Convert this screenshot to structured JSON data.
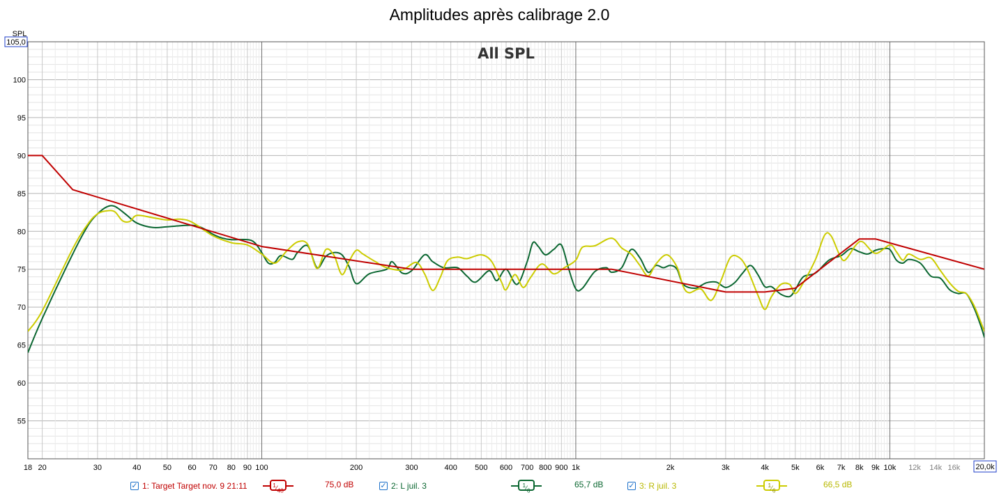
{
  "title": "Amplitudes après calibrage 2.0",
  "chart_data": {
    "type": "line",
    "title": "All SPL",
    "ylabel": "SPL",
    "xscale": "log",
    "xlim": [
      18,
      20000
    ],
    "ylim": [
      50,
      105
    ],
    "grid": true,
    "y_ticks": [
      "55",
      "60",
      "65",
      "70",
      "75",
      "80",
      "85",
      "90",
      "95",
      "100"
    ],
    "y_top_box": "105,0",
    "x_ticks": [
      {
        "f": 18,
        "label": "18",
        "minor": false
      },
      {
        "f": 20,
        "label": "20",
        "minor": false
      },
      {
        "f": 30,
        "label": "30",
        "minor": false
      },
      {
        "f": 40,
        "label": "40",
        "minor": false
      },
      {
        "f": 50,
        "label": "50",
        "minor": false
      },
      {
        "f": 60,
        "label": "60",
        "minor": false
      },
      {
        "f": 70,
        "label": "70",
        "minor": false
      },
      {
        "f": 80,
        "label": "80",
        "minor": false
      },
      {
        "f": 90,
        "label": "90",
        "minor": false
      },
      {
        "f": 100,
        "label": "100",
        "minor": false
      },
      {
        "f": 200,
        "label": "200",
        "minor": false
      },
      {
        "f": 300,
        "label": "300",
        "minor": false
      },
      {
        "f": 400,
        "label": "400",
        "minor": false
      },
      {
        "f": 500,
        "label": "500",
        "minor": false
      },
      {
        "f": 600,
        "label": "600",
        "minor": false
      },
      {
        "f": 700,
        "label": "700",
        "minor": false
      },
      {
        "f": 800,
        "label": "800",
        "minor": false
      },
      {
        "f": 900,
        "label": "900",
        "minor": false
      },
      {
        "f": 1000,
        "label": "1k",
        "minor": false
      },
      {
        "f": 2000,
        "label": "2k",
        "minor": false
      },
      {
        "f": 3000,
        "label": "3k",
        "minor": false
      },
      {
        "f": 4000,
        "label": "4k",
        "minor": false
      },
      {
        "f": 5000,
        "label": "5k",
        "minor": false
      },
      {
        "f": 6000,
        "label": "6k",
        "minor": false
      },
      {
        "f": 7000,
        "label": "7k",
        "minor": false
      },
      {
        "f": 8000,
        "label": "8k",
        "minor": false
      },
      {
        "f": 9000,
        "label": "9k",
        "minor": false
      },
      {
        "f": 10000,
        "label": "10k",
        "minor": false
      },
      {
        "f": 12000,
        "label": "12k",
        "minor": true
      },
      {
        "f": 14000,
        "label": "14k",
        "minor": true
      },
      {
        "f": 16000,
        "label": "16k",
        "minor": true
      }
    ],
    "x_end_box": "20,0k",
    "series": [
      {
        "name": "1: Target Target nov. 9 21:11",
        "color": "#c00000",
        "smoothing_num": "1",
        "smoothing_den": "48",
        "level": "75,0 dB",
        "points": [
          [
            18,
            90
          ],
          [
            20,
            90
          ],
          [
            25,
            85.5
          ],
          [
            100,
            78
          ],
          [
            300,
            75
          ],
          [
            1300,
            75
          ],
          [
            3000,
            72
          ],
          [
            4000,
            72
          ],
          [
            5000,
            72.5
          ],
          [
            8000,
            79
          ],
          [
            9000,
            79
          ],
          [
            20000,
            75
          ]
        ]
      },
      {
        "name": "2: L juil. 3",
        "color": "#0a6630",
        "smoothing_num": "1",
        "smoothing_den": "6",
        "level": "65,7 dB",
        "points": [
          [
            18,
            64
          ],
          [
            20,
            68.5
          ],
          [
            25,
            77
          ],
          [
            28,
            80.8
          ],
          [
            30,
            82.3
          ],
          [
            32,
            83.2
          ],
          [
            34,
            83.3
          ],
          [
            37,
            82.2
          ],
          [
            40,
            81.1
          ],
          [
            45,
            80.5
          ],
          [
            50,
            80.6
          ],
          [
            60,
            80.8
          ],
          [
            65,
            80.4
          ],
          [
            70,
            79.6
          ],
          [
            75,
            79.1
          ],
          [
            80,
            78.9
          ],
          [
            90,
            78.9
          ],
          [
            95,
            78.5
          ],
          [
            100,
            77.2
          ],
          [
            105,
            75.8
          ],
          [
            110,
            75.9
          ],
          [
            115,
            76.8
          ],
          [
            125,
            76.3
          ],
          [
            130,
            77.2
          ],
          [
            140,
            78.1
          ],
          [
            150,
            75.2
          ],
          [
            160,
            76.7
          ],
          [
            170,
            77.2
          ],
          [
            180,
            76.9
          ],
          [
            190,
            75.3
          ],
          [
            200,
            73.1
          ],
          [
            220,
            74.4
          ],
          [
            250,
            75
          ],
          [
            260,
            76
          ],
          [
            280,
            74.5
          ],
          [
            300,
            74.8
          ],
          [
            330,
            76.9
          ],
          [
            350,
            76
          ],
          [
            380,
            75.2
          ],
          [
            420,
            75.2
          ],
          [
            450,
            74.1
          ],
          [
            480,
            73.3
          ],
          [
            530,
            74.8
          ],
          [
            560,
            73.5
          ],
          [
            600,
            75
          ],
          [
            650,
            73
          ],
          [
            700,
            76
          ],
          [
            730,
            78.5
          ],
          [
            760,
            78
          ],
          [
            800,
            76.9
          ],
          [
            850,
            77.6
          ],
          [
            900,
            78.2
          ],
          [
            950,
            75
          ],
          [
            1000,
            72.4
          ],
          [
            1050,
            72.5
          ],
          [
            1150,
            74.7
          ],
          [
            1250,
            75.2
          ],
          [
            1300,
            74.6
          ],
          [
            1400,
            75.2
          ],
          [
            1500,
            77.6
          ],
          [
            1600,
            76.5
          ],
          [
            1700,
            74.6
          ],
          [
            1800,
            75.5
          ],
          [
            1900,
            75.2
          ],
          [
            2000,
            75.5
          ],
          [
            2100,
            75
          ],
          [
            2200,
            73
          ],
          [
            2400,
            72.5
          ],
          [
            2600,
            73.2
          ],
          [
            2800,
            73.3
          ],
          [
            3000,
            72.6
          ],
          [
            3200,
            73.2
          ],
          [
            3400,
            74.5
          ],
          [
            3600,
            75.5
          ],
          [
            3800,
            74.3
          ],
          [
            4000,
            72.7
          ],
          [
            4200,
            72.7
          ],
          [
            4500,
            71.7
          ],
          [
            4800,
            71.4
          ],
          [
            5000,
            72.3
          ],
          [
            5300,
            74
          ],
          [
            5800,
            74.5
          ],
          [
            6400,
            76.2
          ],
          [
            7000,
            76.8
          ],
          [
            7500,
            77.7
          ],
          [
            8000,
            77.3
          ],
          [
            8500,
            77
          ],
          [
            9000,
            77.5
          ],
          [
            9500,
            77.7
          ],
          [
            10000,
            77.6
          ],
          [
            10500,
            76.2
          ],
          [
            11000,
            75.8
          ],
          [
            11500,
            76.3
          ],
          [
            12500,
            75.8
          ],
          [
            13500,
            74.1
          ],
          [
            14500,
            73.8
          ],
          [
            15500,
            72.3
          ],
          [
            16500,
            71.8
          ],
          [
            17500,
            71.8
          ],
          [
            18500,
            70
          ],
          [
            19500,
            67.5
          ],
          [
            20000,
            66
          ]
        ]
      },
      {
        "name": "3: R juil. 3",
        "color": "#cccc00",
        "smoothing_num": "1",
        "smoothing_den": "6",
        "level": "66,5 dB",
        "points": [
          [
            18,
            66.8
          ],
          [
            20,
            69.5
          ],
          [
            25,
            77.7
          ],
          [
            28,
            81
          ],
          [
            30,
            82.3
          ],
          [
            32,
            82.7
          ],
          [
            34,
            82.6
          ],
          [
            36,
            81.4
          ],
          [
            38,
            81.3
          ],
          [
            40,
            82.1
          ],
          [
            45,
            81.8
          ],
          [
            50,
            81.5
          ],
          [
            55,
            81.6
          ],
          [
            60,
            81.2
          ],
          [
            70,
            79.4
          ],
          [
            80,
            78.5
          ],
          [
            90,
            78.2
          ],
          [
            100,
            77
          ],
          [
            110,
            75.8
          ],
          [
            120,
            77.4
          ],
          [
            130,
            78.6
          ],
          [
            140,
            78.3
          ],
          [
            150,
            75.1
          ],
          [
            160,
            77.6
          ],
          [
            170,
            76.8
          ],
          [
            180,
            74.3
          ],
          [
            190,
            76.1
          ],
          [
            200,
            77.5
          ],
          [
            210,
            77
          ],
          [
            230,
            76
          ],
          [
            250,
            75.2
          ],
          [
            280,
            74.9
          ],
          [
            310,
            75.9
          ],
          [
            330,
            74.4
          ],
          [
            350,
            72.2
          ],
          [
            370,
            73.9
          ],
          [
            390,
            76.1
          ],
          [
            420,
            76.6
          ],
          [
            450,
            76.4
          ],
          [
            500,
            76.9
          ],
          [
            540,
            76
          ],
          [
            580,
            73.3
          ],
          [
            600,
            72.3
          ],
          [
            640,
            74.3
          ],
          [
            680,
            72.6
          ],
          [
            720,
            74
          ],
          [
            780,
            75.7
          ],
          [
            850,
            74.4
          ],
          [
            920,
            75.2
          ],
          [
            1000,
            76.2
          ],
          [
            1050,
            77.9
          ],
          [
            1150,
            78.1
          ],
          [
            1300,
            79.1
          ],
          [
            1400,
            77.8
          ],
          [
            1500,
            77
          ],
          [
            1600,
            75.5
          ],
          [
            1700,
            74.1
          ],
          [
            1800,
            75.7
          ],
          [
            1950,
            76.9
          ],
          [
            2100,
            75.3
          ],
          [
            2200,
            72.7
          ],
          [
            2300,
            71.9
          ],
          [
            2500,
            72.4
          ],
          [
            2700,
            70.9
          ],
          [
            2900,
            73.5
          ],
          [
            3100,
            76.5
          ],
          [
            3300,
            76.6
          ],
          [
            3500,
            75.2
          ],
          [
            3800,
            71.6
          ],
          [
            4000,
            69.7
          ],
          [
            4200,
            71.4
          ],
          [
            4500,
            73
          ],
          [
            4800,
            73
          ],
          [
            5000,
            71.8
          ],
          [
            5300,
            73.2
          ],
          [
            5800,
            76.3
          ],
          [
            6200,
            79.5
          ],
          [
            6500,
            79.4
          ],
          [
            6900,
            77
          ],
          [
            7200,
            76.2
          ],
          [
            7800,
            78.2
          ],
          [
            8200,
            78.6
          ],
          [
            9000,
            77.1
          ],
          [
            10000,
            78.2
          ],
          [
            10500,
            77.3
          ],
          [
            11000,
            76.2
          ],
          [
            11500,
            77
          ],
          [
            12500,
            76.3
          ],
          [
            13500,
            76.5
          ],
          [
            14500,
            74.8
          ],
          [
            15500,
            73.2
          ],
          [
            16500,
            72.1
          ],
          [
            17500,
            71.8
          ],
          [
            18500,
            70.3
          ],
          [
            19500,
            68
          ],
          [
            20000,
            66.8
          ]
        ]
      }
    ]
  }
}
